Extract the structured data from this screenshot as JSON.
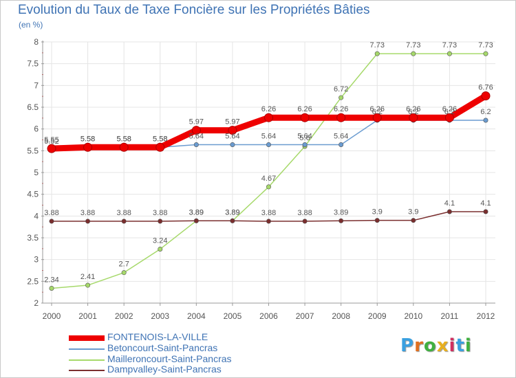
{
  "chart_data": {
    "type": "line",
    "title": "Evolution du Taux de Taxe Foncière sur les Propriétés Bâties",
    "subtitle": "(en %)",
    "xlabel": "",
    "ylabel": "",
    "x": [
      "2000",
      "2001",
      "2002",
      "2003",
      "2004",
      "2005",
      "2006",
      "2007",
      "2008",
      "2009",
      "2010",
      "2011",
      "2012"
    ],
    "ylim": [
      2,
      8
    ],
    "yticks": [
      "2",
      "2.5",
      "3",
      "3.5",
      "4",
      "4.5",
      "5",
      "5.5",
      "6",
      "6.5",
      "7",
      "7.5",
      "8"
    ],
    "series": [
      {
        "name": "FONTENOIS-LA-VILLE",
        "color": "#ee0000",
        "values": [
          5.55,
          5.58,
          5.58,
          5.58,
          5.97,
          5.97,
          6.26,
          6.26,
          6.26,
          6.26,
          6.26,
          6.26,
          6.76
        ],
        "labels": [
          "5.55",
          "5.58",
          "5.58",
          "5.58",
          "5.97",
          "5.97",
          "6.26",
          "6.26",
          "6.26",
          "6.26",
          "6.26",
          "6.26",
          "6.76"
        ]
      },
      {
        "name": "Betoncourt-Saint-Pancras",
        "color": "#6a9bd0",
        "values": [
          5.52,
          5.58,
          5.58,
          5.58,
          5.64,
          5.64,
          5.64,
          5.64,
          5.64,
          6.2,
          6.2,
          6.2,
          6.2
        ],
        "labels": [
          "5.52",
          "5.58",
          "5.58",
          "5.58",
          "5.64",
          "5.64",
          "5.64",
          "5.64",
          "5.64",
          "6.2",
          "6.2",
          "6.2",
          "6.2"
        ]
      },
      {
        "name": "Mailleroncourt-Saint-Pancras",
        "color": "#a6d96a",
        "values": [
          2.34,
          2.41,
          2.7,
          3.24,
          3.89,
          3.89,
          4.67,
          5.6,
          6.72,
          7.73,
          7.73,
          7.73,
          7.73
        ],
        "labels": [
          "2.34",
          "2.41",
          "2.7",
          "3.24",
          "3.89",
          "3.89",
          "4.67",
          "5.6",
          "6.72",
          "7.73",
          "7.73",
          "7.73",
          "7.73"
        ]
      },
      {
        "name": "Dampvalley-Saint-Pancras",
        "color": "#7a2e2e",
        "values": [
          3.88,
          3.88,
          3.88,
          3.88,
          3.89,
          3.89,
          3.88,
          3.88,
          3.89,
          3.9,
          3.9,
          4.1,
          4.1
        ],
        "labels": [
          "3.88",
          "3.88",
          "3.88",
          "3.88",
          "3.89",
          "3.89",
          "3.88",
          "3.88",
          "3.89",
          "3.9",
          "3.9",
          "4.1",
          "4.1"
        ]
      }
    ],
    "legend_position": "bottom-left"
  },
  "logo": {
    "letters": [
      "P",
      "r",
      "o",
      "x",
      "i",
      "t",
      "i"
    ],
    "colors": [
      "#3aa0e0",
      "#e07020",
      "#40b040",
      "#e8b020",
      "#d03060",
      "#3aa0e0",
      "#40b040"
    ]
  }
}
